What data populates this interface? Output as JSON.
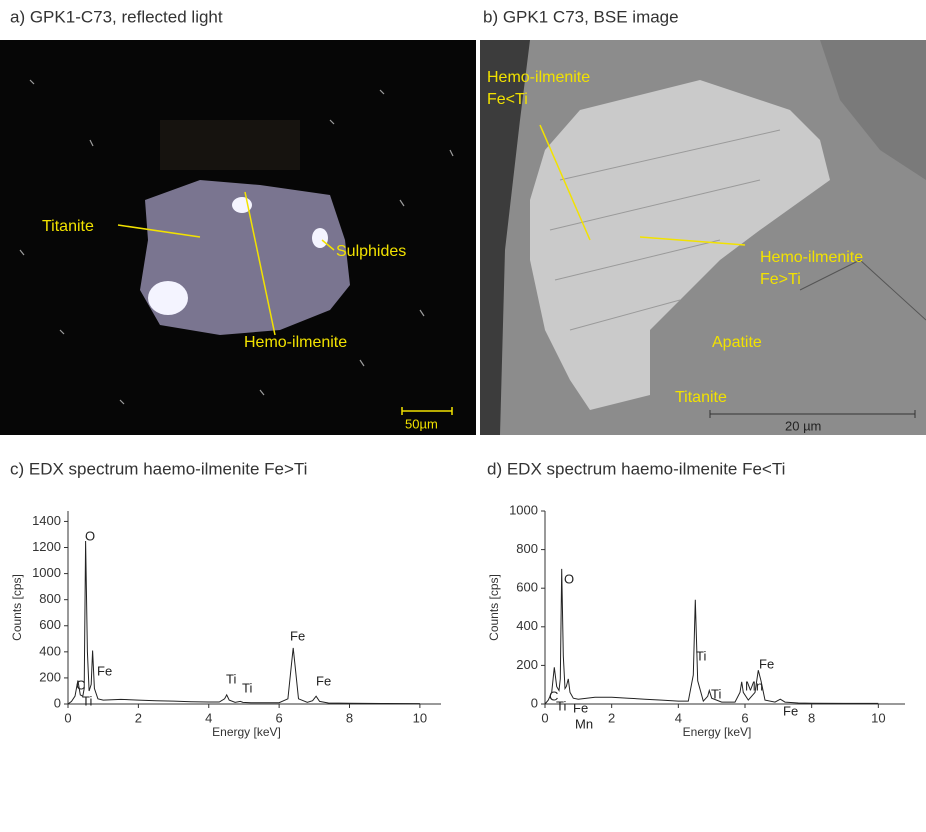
{
  "panels": [
    {
      "title": "a) GPK1-C73, reflected light",
      "labels": [
        "Titanite",
        "Sulphides",
        "Hemo-ilmenite"
      ],
      "scale": "50µm"
    },
    {
      "title": "b) GPK1 C73, BSE image",
      "labels": [
        [
          "Hemo-ilmenite",
          "Fe<Ti"
        ],
        [
          "Hemo-ilmenite",
          "Fe>Ti"
        ],
        "Apatite",
        "Titanite"
      ],
      "scale": "20 µm"
    }
  ],
  "chart_data": [
    {
      "type": "line",
      "title": "c) EDX spectrum haemo-ilmenite Fe>Ti",
      "xlabel": "Energy [keV]",
      "ylabel": "Counts [cps]",
      "color": "#222222",
      "x": [
        0,
        0.1,
        0.2,
        0.28,
        0.35,
        0.42,
        0.46,
        0.5,
        0.55,
        0.6,
        0.66,
        0.7,
        0.75,
        0.85,
        1.0,
        1.5,
        2,
        2.5,
        3,
        3.5,
        4,
        4.3,
        4.45,
        4.51,
        4.58,
        4.75,
        4.9,
        4.97,
        5.2,
        5.6,
        6.0,
        6.25,
        6.35,
        6.4,
        6.45,
        6.55,
        6.8,
        6.95,
        7.05,
        7.15,
        7.4,
        8,
        9,
        10
      ],
      "values": [
        0,
        20,
        60,
        180,
        70,
        60,
        120,
        1250,
        400,
        100,
        150,
        410,
        120,
        40,
        30,
        35,
        30,
        25,
        22,
        18,
        15,
        15,
        40,
        70,
        30,
        12,
        20,
        12,
        10,
        10,
        10,
        40,
        300,
        430,
        300,
        40,
        12,
        25,
        60,
        20,
        8,
        6,
        4,
        3
      ],
      "peak_labels": [
        "C",
        "Ti",
        "O",
        "Fe",
        "Ti",
        "Ti",
        "Fe",
        "Fe"
      ],
      "xlim": [
        0,
        10.6
      ],
      "ylim": [
        0,
        1480
      ],
      "xticks": [
        0,
        2,
        4,
        6,
        8,
        10
      ],
      "yticks": [
        0,
        200,
        400,
        600,
        800,
        1000,
        1200,
        1400
      ]
    },
    {
      "type": "line",
      "title": "d) EDX spectrum haemo-ilmenite Fe<Ti",
      "xlabel": "Energy [keV]",
      "ylabel": "Counts [cps]",
      "color": "#222222",
      "x": [
        0,
        0.1,
        0.2,
        0.28,
        0.35,
        0.42,
        0.46,
        0.5,
        0.55,
        0.6,
        0.64,
        0.7,
        0.75,
        0.85,
        1.0,
        1.5,
        2,
        2.5,
        3,
        3.5,
        4,
        4.3,
        4.45,
        4.51,
        4.58,
        4.75,
        4.88,
        4.93,
        5.0,
        5.3,
        5.7,
        5.85,
        5.9,
        5.95,
        6.1,
        6.3,
        6.4,
        6.48,
        6.6,
        6.9,
        7.06,
        7.2,
        7.6,
        8,
        9,
        10
      ],
      "values": [
        0,
        20,
        60,
        190,
        90,
        70,
        130,
        700,
        250,
        80,
        90,
        130,
        60,
        30,
        25,
        35,
        35,
        30,
        25,
        20,
        15,
        15,
        150,
        540,
        120,
        15,
        40,
        70,
        30,
        10,
        10,
        60,
        115,
        60,
        20,
        60,
        175,
        120,
        20,
        10,
        25,
        10,
        5,
        4,
        3,
        3
      ],
      "peak_labels": [
        "C",
        "Ti",
        "O",
        "Fe",
        "Mn",
        "Ti",
        "Ti",
        "Mn",
        "Fe",
        "Fe"
      ],
      "xlim": [
        0,
        10.8
      ],
      "ylim": [
        0,
        1000
      ],
      "xticks": [
        0,
        2,
        4,
        6,
        8,
        10
      ],
      "yticks": [
        0,
        200,
        400,
        600,
        800,
        1000
      ]
    }
  ]
}
